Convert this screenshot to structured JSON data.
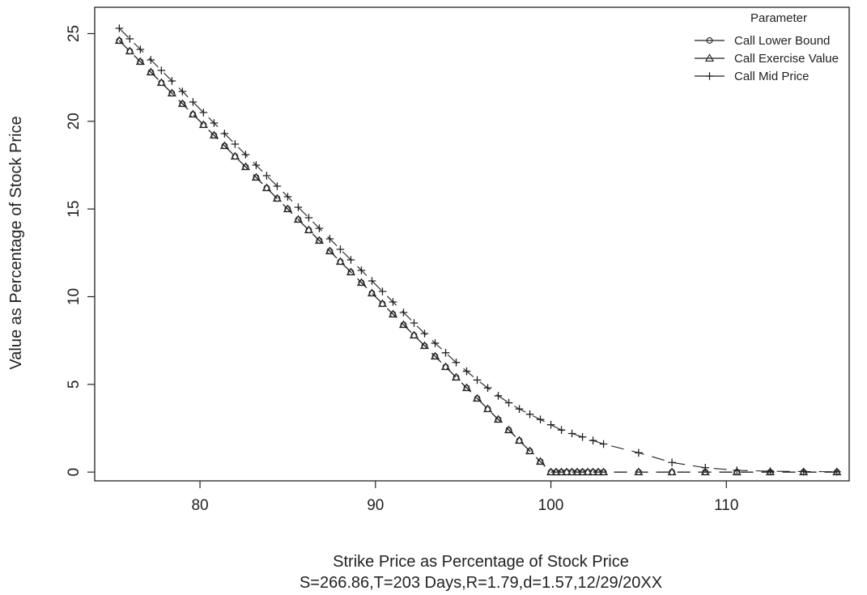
{
  "chart_data": {
    "type": "line",
    "title": "",
    "xlabel": "Strike Price as Percentage of Stock Price",
    "subtitle": "S=266.86,T=203 Days,R=1.79,d=1.57,12/29/20XX",
    "ylabel": "Value as Percentage of Stock Price",
    "xlim": [
      74,
      117
    ],
    "ylim": [
      -0.5,
      26.5
    ],
    "x_ticks": [
      80,
      90,
      100,
      110
    ],
    "y_ticks": [
      0,
      5,
      10,
      15,
      20,
      25
    ],
    "grid": false,
    "legend": {
      "title": "Parameter",
      "placement": "top-right"
    },
    "series": [
      {
        "name": "Call Lower Bound",
        "marker": "circle",
        "x": [
          75.4,
          76.0,
          76.6,
          77.2,
          77.8,
          78.4,
          79.0,
          79.6,
          80.2,
          80.8,
          81.4,
          82.0,
          82.6,
          83.2,
          83.8,
          84.4,
          85.0,
          85.6,
          86.2,
          86.8,
          87.4,
          88.0,
          88.6,
          89.2,
          89.8,
          90.4,
          91.0,
          91.6,
          92.2,
          92.8,
          93.4,
          94.0,
          94.6,
          95.2,
          95.8,
          96.4,
          97.0,
          97.6,
          98.2,
          98.8,
          99.4,
          100.0,
          100.3,
          100.6,
          100.9,
          101.2,
          101.5,
          101.8,
          102.1,
          102.4,
          102.7,
          103.0,
          105.0,
          106.9,
          108.8,
          110.6,
          112.5,
          114.4,
          116.3
        ],
        "y": [
          24.6,
          24.0,
          23.4,
          22.8,
          22.2,
          21.6,
          21.0,
          20.4,
          19.8,
          19.2,
          18.6,
          18.0,
          17.4,
          16.8,
          16.2,
          15.6,
          15.0,
          14.4,
          13.8,
          13.2,
          12.6,
          12.0,
          11.4,
          10.8,
          10.2,
          9.6,
          9.0,
          8.4,
          7.8,
          7.2,
          6.6,
          6.0,
          5.4,
          4.8,
          4.2,
          3.6,
          3.0,
          2.4,
          1.8,
          1.2,
          0.6,
          0.0,
          0.0,
          0.0,
          0.0,
          0.0,
          0.0,
          0.0,
          0.0,
          0.0,
          0.0,
          0.0,
          0.0,
          0.0,
          0.0,
          0.0,
          0.0,
          0.0,
          0.0
        ]
      },
      {
        "name": "Call Exercise Value",
        "marker": "triangle",
        "x": [
          75.4,
          76.0,
          76.6,
          77.2,
          77.8,
          78.4,
          79.0,
          79.6,
          80.2,
          80.8,
          81.4,
          82.0,
          82.6,
          83.2,
          83.8,
          84.4,
          85.0,
          85.6,
          86.2,
          86.8,
          87.4,
          88.0,
          88.6,
          89.2,
          89.8,
          90.4,
          91.0,
          91.6,
          92.2,
          92.8,
          93.4,
          94.0,
          94.6,
          95.2,
          95.8,
          96.4,
          97.0,
          97.6,
          98.2,
          98.8,
          99.4,
          100.0,
          100.3,
          100.6,
          100.9,
          101.2,
          101.5,
          101.8,
          102.1,
          102.4,
          102.7,
          103.0,
          105.0,
          106.9,
          108.8,
          110.6,
          112.5,
          114.4,
          116.3
        ],
        "y": [
          24.6,
          24.0,
          23.4,
          22.8,
          22.2,
          21.6,
          21.0,
          20.4,
          19.8,
          19.2,
          18.6,
          18.0,
          17.4,
          16.8,
          16.2,
          15.6,
          15.0,
          14.4,
          13.8,
          13.2,
          12.6,
          12.0,
          11.4,
          10.8,
          10.2,
          9.6,
          9.0,
          8.4,
          7.8,
          7.2,
          6.6,
          6.0,
          5.4,
          4.8,
          4.2,
          3.6,
          3.0,
          2.4,
          1.8,
          1.2,
          0.6,
          0.0,
          0.0,
          0.0,
          0.0,
          0.0,
          0.0,
          0.0,
          0.0,
          0.0,
          0.0,
          0.0,
          0.0,
          0.0,
          0.0,
          0.0,
          0.0,
          0.0,
          0.0
        ]
      },
      {
        "name": "Call Mid Price",
        "marker": "plus",
        "x": [
          75.4,
          76.0,
          76.6,
          77.2,
          77.8,
          78.4,
          79.0,
          79.6,
          80.2,
          80.8,
          81.4,
          82.0,
          82.6,
          83.2,
          83.8,
          84.4,
          85.0,
          85.6,
          86.2,
          86.8,
          87.4,
          88.0,
          88.6,
          89.2,
          89.8,
          90.4,
          91.0,
          91.6,
          92.2,
          92.8,
          93.4,
          94.0,
          94.6,
          95.2,
          95.8,
          96.4,
          97.0,
          97.6,
          98.2,
          98.8,
          99.4,
          100.0,
          100.6,
          101.2,
          101.8,
          102.4,
          103.0,
          105.0,
          106.9,
          108.8,
          110.6,
          112.5,
          114.4,
          116.3
        ],
        "y": [
          25.3,
          24.7,
          24.1,
          23.5,
          22.9,
          22.3,
          21.7,
          21.1,
          20.5,
          19.9,
          19.3,
          18.7,
          18.1,
          17.5,
          16.9,
          16.3,
          15.7,
          15.1,
          14.5,
          13.9,
          13.3,
          12.7,
          12.1,
          11.5,
          10.9,
          10.3,
          9.7,
          9.1,
          8.5,
          7.9,
          7.35,
          6.8,
          6.25,
          5.75,
          5.25,
          4.8,
          4.35,
          3.95,
          3.6,
          3.3,
          3.0,
          2.7,
          2.4,
          2.2,
          2.0,
          1.8,
          1.6,
          1.1,
          0.55,
          0.25,
          0.1,
          0.05,
          0.03,
          0.02
        ]
      }
    ]
  }
}
